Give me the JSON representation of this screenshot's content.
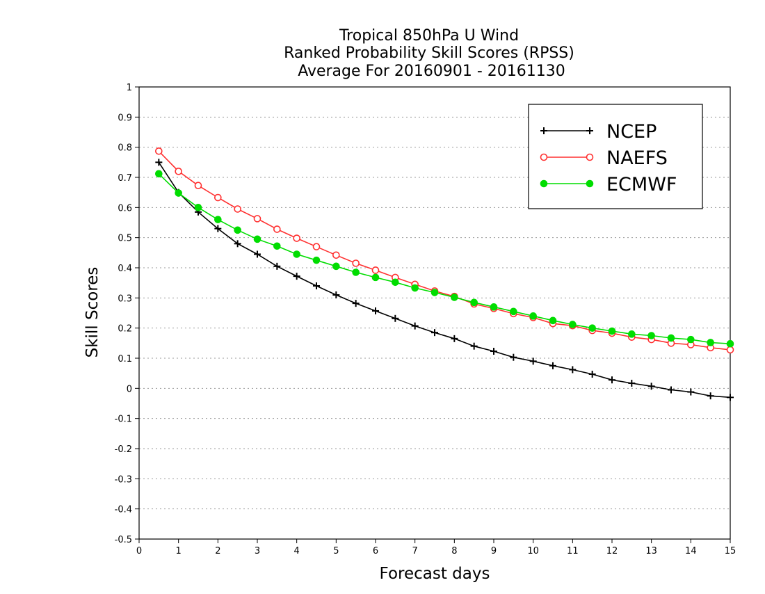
{
  "chart_data": {
    "type": "line",
    "title_lines": [
      "Tropical 850hPa U Wind",
      "Ranked Probability Skill Scores (RPSS)",
      " Average For 20160901 - 20161130"
    ],
    "xlabel": "Forecast days",
    "ylabel": "Skill Scores",
    "xlim": [
      0,
      15
    ],
    "ylim": [
      -0.5,
      1
    ],
    "xticks": [
      "0",
      "1",
      "2",
      "3",
      "4",
      "5",
      "6",
      "7",
      "8",
      "9",
      "10",
      "11",
      "12",
      "13",
      "14",
      "15"
    ],
    "yticks": [
      "1",
      "0.9",
      "0.8",
      "0.7",
      "0.6",
      "0.5",
      "0.4",
      "0.3",
      "0.2",
      "0.1",
      "0",
      "-0.1",
      "-0.2",
      "-0.3",
      "-0.4",
      "-0.5"
    ],
    "grid": "dotted horizontal",
    "legend_position": "top-right",
    "x": [
      0.5,
      1,
      1.5,
      2,
      2.5,
      3,
      3.5,
      4,
      4.5,
      5,
      5.5,
      6,
      6.5,
      7,
      7.5,
      8,
      8.5,
      9,
      9.5,
      10,
      10.5,
      11,
      11.5,
      12,
      12.5,
      13,
      13.5,
      14,
      14.5,
      15
    ],
    "series": [
      {
        "name": "NCEP",
        "color": "#000000",
        "marker": "plus",
        "values": [
          0.75,
          0.65,
          0.585,
          0.53,
          0.48,
          0.445,
          0.405,
          0.372,
          0.34,
          0.31,
          0.282,
          0.257,
          0.232,
          0.207,
          0.185,
          0.165,
          0.14,
          0.123,
          0.103,
          0.09,
          0.075,
          0.062,
          0.047,
          0.028,
          0.017,
          0.007,
          -0.005,
          -0.012,
          -0.025,
          -0.03
        ]
      },
      {
        "name": "NAEFS",
        "color": "#ff3030",
        "marker": "open-circle",
        "values": [
          0.787,
          0.72,
          0.673,
          0.633,
          0.595,
          0.563,
          0.528,
          0.498,
          0.47,
          0.442,
          0.415,
          0.392,
          0.368,
          0.345,
          0.323,
          0.305,
          0.28,
          0.265,
          0.248,
          0.235,
          0.215,
          0.208,
          0.192,
          0.183,
          0.17,
          0.162,
          0.15,
          0.145,
          0.135,
          0.128
        ]
      },
      {
        "name": "ECMWF",
        "color": "#00dd00",
        "marker": "filled-circle",
        "values": [
          0.712,
          0.648,
          0.6,
          0.56,
          0.525,
          0.495,
          0.472,
          0.445,
          0.425,
          0.405,
          0.385,
          0.368,
          0.352,
          0.333,
          0.318,
          0.302,
          0.285,
          0.27,
          0.255,
          0.24,
          0.225,
          0.212,
          0.2,
          0.19,
          0.18,
          0.175,
          0.167,
          0.162,
          0.152,
          0.148
        ]
      }
    ]
  }
}
